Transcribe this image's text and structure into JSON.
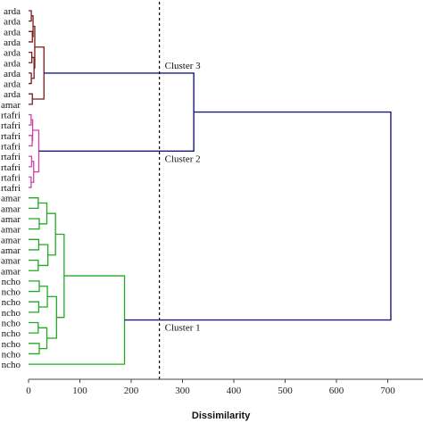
{
  "chart_data": {
    "type": "dendrogram",
    "orientation": "horizontal",
    "xlabel": "Dissimilarity",
    "xlim": [
      0,
      750
    ],
    "xticks": [
      0,
      100,
      200,
      300,
      400,
      500,
      600,
      700
    ],
    "cut_line": {
      "value": 255,
      "style": "dashed"
    },
    "colors": {
      "group_arda": "#7a1a1a",
      "group_artafri": "#cc44aa",
      "group_green": "#22aa22",
      "root": "#1a1a7a",
      "cut": "#000000",
      "axis": "#444444"
    },
    "leaves": [
      "arda",
      "arda",
      "arda",
      "arda",
      "arda",
      "arda",
      "arda",
      "arda",
      "arda",
      "amar",
      "rtafri",
      "rtafri",
      "rtafri",
      "rtafri",
      "rtafri",
      "rtafri",
      "rtafri",
      "rtafri",
      "amar",
      "amar",
      "amar",
      "amar",
      "amar",
      "amar",
      "amar",
      "amar",
      "ncho",
      "ncho",
      "ncho",
      "ncho",
      "ncho",
      "ncho",
      "ncho",
      "ncho",
      "ncho"
    ],
    "clusters": [
      {
        "label": "Cluster 3",
        "leaves_from": 0,
        "leaves_to": 9,
        "height": 30,
        "color_key": "group_arda"
      },
      {
        "label": "Cluster 2",
        "leaves_from": 10,
        "leaves_to": 17,
        "height": 20,
        "color_key": "group_artafri"
      },
      {
        "label": "Cluster 1",
        "leaves_from": 18,
        "leaves_to": 34,
        "height": 187,
        "color_key": "group_green"
      }
    ],
    "upper_merges": [
      {
        "join": [
          "Cluster 3",
          "Cluster 2"
        ],
        "height": 322
      },
      {
        "join": [
          "Cluster 3 + Cluster 2",
          "Cluster 1"
        ],
        "height": 706
      }
    ]
  }
}
